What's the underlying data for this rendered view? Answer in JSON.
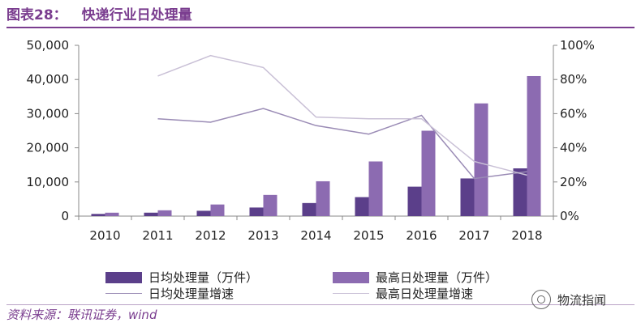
{
  "header": {
    "figure_number": "图表28：",
    "title": "快递行业日处理量"
  },
  "colors": {
    "accent": "#7a3d8f",
    "series_dark": "#5b3f8a",
    "series_light": "#8c6bb1",
    "line_dark": "#9a8bb5",
    "line_light": "#c9c0d6"
  },
  "chart_data": {
    "type": "bar",
    "categories": [
      "2010",
      "2011",
      "2012",
      "2013",
      "2014",
      "2015",
      "2016",
      "2017",
      "2018"
    ],
    "series": [
      {
        "name": "日均处理量（万件）",
        "type": "bar",
        "axis": "left",
        "values": [
          641,
          1006,
          1561,
          2511,
          3829,
          5562,
          8620,
          11030,
          13980
        ]
      },
      {
        "name": "最高日处理量（万件）",
        "type": "bar",
        "axis": "left",
        "values": [
          1000,
          1700,
          3400,
          6200,
          10200,
          16000,
          25000,
          33000,
          41000
        ]
      },
      {
        "name": "日均处理量增速",
        "type": "line",
        "axis": "right",
        "values": [
          null,
          57,
          55,
          63,
          53,
          48,
          59,
          22,
          26
        ]
      },
      {
        "name": "最高日处理量增速",
        "type": "line",
        "axis": "right",
        "values": [
          null,
          82,
          94,
          87,
          58,
          57,
          57,
          32,
          24
        ]
      }
    ],
    "left_axis": {
      "ylim": [
        0,
        50000
      ],
      "ticks": [
        "0",
        "10,000",
        "20,000",
        "30,000",
        "40,000",
        "50,000"
      ]
    },
    "right_axis": {
      "ylim": [
        0,
        100
      ],
      "ticks": [
        "0%",
        "20%",
        "40%",
        "60%",
        "80%",
        "100%"
      ]
    },
    "legend": {
      "position": "bottom"
    }
  },
  "legend": {
    "items": [
      "日均处理量（万件）",
      "最高日处理量（万件）",
      "日均处理量增速",
      "最高日处理量增速"
    ]
  },
  "footer": {
    "source": "资料来源：联讯证券，wind",
    "watermark": "物流指闻"
  }
}
